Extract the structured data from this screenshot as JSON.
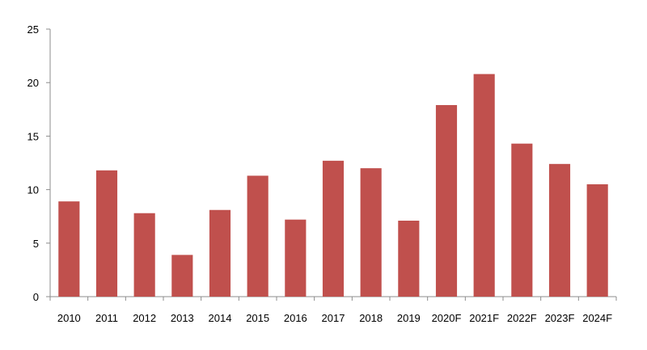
{
  "chart_data": {
    "type": "bar",
    "categories": [
      "2010",
      "2011",
      "2012",
      "2013",
      "2014",
      "2015",
      "2016",
      "2017",
      "2018",
      "2019",
      "2020F",
      "2021F",
      "2022F",
      "2023F",
      "2024F"
    ],
    "values": [
      8.9,
      11.8,
      7.8,
      3.9,
      8.1,
      11.3,
      7.2,
      12.7,
      12.0,
      7.1,
      17.9,
      20.8,
      14.3,
      12.4,
      10.5
    ],
    "title": "",
    "xlabel": "",
    "ylabel": "",
    "ylim": [
      0,
      25
    ],
    "yticks": [
      "0",
      "5",
      "10",
      "15",
      "20",
      "25"
    ],
    "grid": false,
    "legend": "none",
    "bar_color": "#c0504d"
  }
}
